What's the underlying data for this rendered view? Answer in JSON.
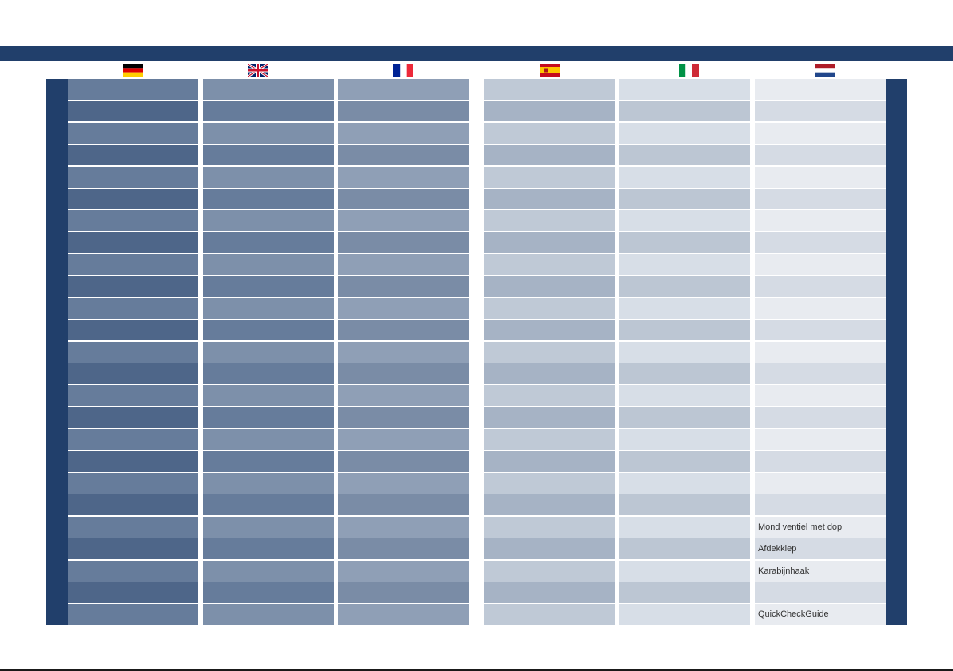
{
  "flags": [
    {
      "language": "German",
      "icon": "german-flag-icon"
    },
    {
      "language": "English",
      "icon": "uk-flag-icon"
    },
    {
      "language": "French",
      "icon": "french-flag-icon"
    },
    {
      "language": "Spanish",
      "icon": "spanish-flag-icon"
    },
    {
      "language": "Italian",
      "icon": "italian-flag-icon"
    },
    {
      "language": "Dutch",
      "icon": "dutch-flag-icon"
    }
  ],
  "colors": {
    "navy": "#213f6b",
    "columns": [
      {
        "odd": "#667c9b",
        "even": "#4e6689"
      },
      {
        "odd": "#7d90aa",
        "even": "#667c9b"
      },
      {
        "odd": "#8f9fb6",
        "even": "#7a8ca6"
      },
      {
        "odd": "#bfc9d6",
        "even": "#a6b3c5"
      },
      {
        "odd": "#d7dee7",
        "even": "#bcc6d3"
      },
      {
        "odd": "#e8ebf0",
        "even": "#d5dbe4"
      }
    ]
  },
  "dutch_rows": [
    "",
    "",
    "",
    "",
    "",
    "",
    "",
    "",
    "",
    "",
    "",
    "",
    "",
    "",
    "",
    "",
    "",
    "",
    "",
    "",
    "Mond ventiel met dop",
    "Afdekklep",
    "Karabijnhaak",
    "",
    "QuickCheckGuide"
  ]
}
